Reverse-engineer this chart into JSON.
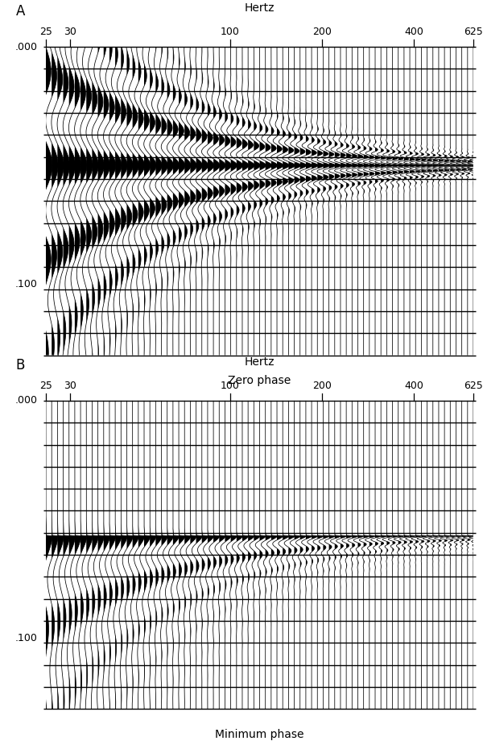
{
  "background_color": "#ffffff",
  "freq_min": 25,
  "freq_max": 625,
  "freq_ticks": [
    25,
    30,
    100,
    200,
    400,
    625
  ],
  "t_min": 0.0,
  "t_max": 0.13,
  "n_traces": 75,
  "n_rows": 14,
  "reflection_time_A": 0.05,
  "reflection_time_B": 0.057,
  "panel_A_label": "A",
  "panel_B_label": "B",
  "panel_A_subtitle": "Zero phase",
  "panel_B_subtitle": "Minimum phase",
  "hertz_label": "Hertz",
  "time_ticks": [
    0.0,
    0.1
  ],
  "time_tick_labels": [
    ".000",
    ".100"
  ],
  "trace_lw": 0.55,
  "row_line_lw": 1.0
}
